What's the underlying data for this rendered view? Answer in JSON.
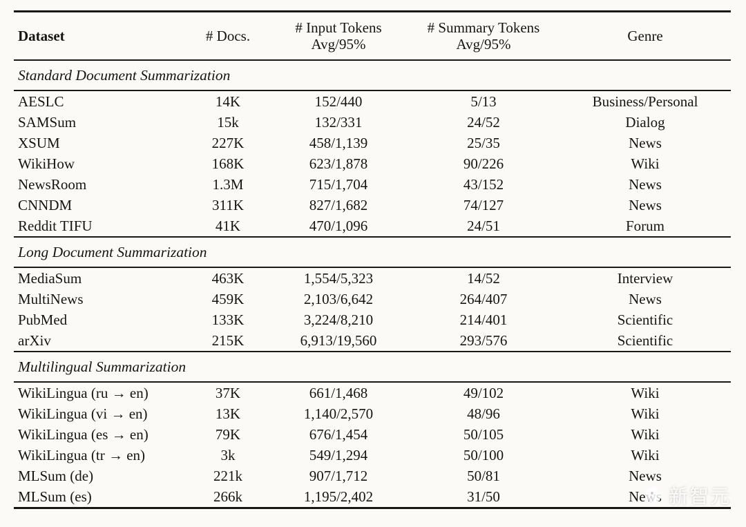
{
  "table": {
    "headers": {
      "dataset": "Dataset",
      "docs": "# Docs.",
      "input_tokens_line1": "# Input Tokens",
      "input_tokens_line2": "Avg/95%",
      "summary_tokens_line1": "# Summary Tokens",
      "summary_tokens_line2": "Avg/95%",
      "genre": "Genre"
    },
    "sections": [
      {
        "title": "Standard Document Summarization",
        "rows": [
          [
            "AESLC",
            "14K",
            "152/440",
            "5/13",
            "Business/Personal"
          ],
          [
            "SAMSum",
            "15k",
            "132/331",
            "24/52",
            "Dialog"
          ],
          [
            "XSUM",
            "227K",
            "458/1,139",
            "25/35",
            "News"
          ],
          [
            "WikiHow",
            "168K",
            "623/1,878",
            "90/226",
            "Wiki"
          ],
          [
            "NewsRoom",
            "1.3M",
            "715/1,704",
            "43/152",
            "News"
          ],
          [
            "CNNDM",
            "311K",
            "827/1,682",
            "74/127",
            "News"
          ],
          [
            "Reddit TIFU",
            "41K",
            "470/1,096",
            "24/51",
            "Forum"
          ]
        ]
      },
      {
        "title": "Long Document Summarization",
        "rows": [
          [
            "MediaSum",
            "463K",
            "1,554/5,323",
            "14/52",
            "Interview"
          ],
          [
            "MultiNews",
            "459K",
            "2,103/6,642",
            "264/407",
            "News"
          ],
          [
            "PubMed",
            "133K",
            "3,224/8,210",
            "214/401",
            "Scientific"
          ],
          [
            "arXiv",
            "215K",
            "6,913/19,560",
            "293/576",
            "Scientific"
          ]
        ]
      },
      {
        "title": "Multilingual Summarization",
        "rows": [
          [
            "WikiLingua (ru → en)",
            "37K",
            "661/1,468",
            "49/102",
            "Wiki"
          ],
          [
            "WikiLingua (vi → en)",
            "13K",
            "1,140/2,570",
            "48/96",
            "Wiki"
          ],
          [
            "WikiLingua (es → en)",
            "79K",
            "676/1,454",
            "50/105",
            "Wiki"
          ],
          [
            "WikiLingua (tr → en)",
            "3k",
            "549/1,294",
            "50/100",
            "Wiki"
          ],
          [
            "MLSum (de)",
            "221k",
            "907/1,712",
            "50/81",
            "News"
          ],
          [
            "MLSum (es)",
            "266k",
            "1,195/2,402",
            "31/50",
            "News"
          ]
        ]
      }
    ]
  },
  "watermark": {
    "text": "新智元"
  }
}
